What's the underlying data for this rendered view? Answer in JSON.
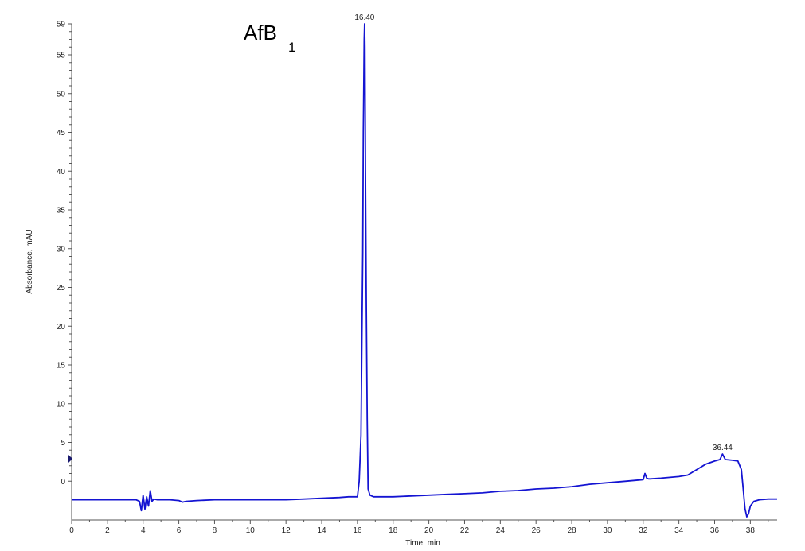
{
  "chart_data": {
    "type": "line",
    "title_main": "AfB",
    "title_sub": "1",
    "xlabel": "Time, min",
    "ylabel": "Absorbance, mAU",
    "xlim": [
      0,
      39.5
    ],
    "ylim": [
      -5,
      59
    ],
    "x_ticks": [
      0,
      2,
      4,
      6,
      8,
      10,
      12,
      14,
      16,
      18,
      20,
      22,
      24,
      26,
      28,
      30,
      32,
      34,
      36,
      38
    ],
    "y_ticks": [
      0,
      5,
      10,
      15,
      20,
      25,
      30,
      35,
      40,
      45,
      50,
      55,
      59
    ],
    "peak_labels": [
      {
        "text": "16.40",
        "x": 16.4,
        "y": 59
      },
      {
        "text": "36.44",
        "x": 36.44,
        "y": 3.5
      }
    ],
    "color": "#1414d2",
    "series": [
      {
        "x": [
          0,
          1,
          2,
          3,
          3.6,
          3.8,
          3.9,
          4.0,
          4.1,
          4.2,
          4.3,
          4.4,
          4.5,
          4.6,
          4.8,
          5.0,
          5.5,
          6.0,
          6.2,
          6.4,
          7,
          8,
          9,
          10,
          11,
          12,
          13,
          14,
          15,
          15.5,
          16.0,
          16.1,
          16.2,
          16.25,
          16.3,
          16.33,
          16.36,
          16.38,
          16.4,
          16.42,
          16.45,
          16.5,
          16.55,
          16.6,
          16.7,
          16.8,
          16.9,
          17.0,
          18,
          19,
          20,
          21,
          22,
          23,
          24,
          25,
          26,
          27,
          28,
          29,
          30,
          31,
          32.0,
          32.1,
          32.2,
          32.3,
          32.4,
          33,
          34,
          34.5,
          35.0,
          35.5,
          36.0,
          36.3,
          36.44,
          36.6,
          37.0,
          37.3,
          37.5,
          37.6,
          37.7,
          37.8,
          37.9,
          38.0,
          38.2,
          38.5,
          39.0,
          39.5
        ],
        "y": [
          -2.4,
          -2.4,
          -2.4,
          -2.4,
          -2.4,
          -2.6,
          -3.8,
          -1.8,
          -3.6,
          -2.0,
          -3.2,
          -1.2,
          -2.6,
          -2.3,
          -2.4,
          -2.4,
          -2.4,
          -2.5,
          -2.7,
          -2.6,
          -2.5,
          -2.4,
          -2.4,
          -2.4,
          -2.4,
          -2.4,
          -2.3,
          -2.2,
          -2.1,
          -2.0,
          -2.0,
          0.0,
          6.0,
          18.0,
          29.5,
          45.0,
          52.5,
          57.0,
          59.0,
          56.0,
          40.0,
          22.0,
          8.0,
          -1.0,
          -1.8,
          -1.9,
          -2.0,
          -2.0,
          -2.0,
          -1.9,
          -1.8,
          -1.7,
          -1.6,
          -1.5,
          -1.3,
          -1.2,
          -1.0,
          -0.9,
          -0.7,
          -0.4,
          -0.2,
          0.0,
          0.2,
          1.0,
          0.4,
          0.3,
          0.3,
          0.4,
          0.6,
          0.8,
          1.5,
          2.2,
          2.6,
          2.8,
          3.5,
          2.8,
          2.7,
          2.6,
          1.5,
          -1.0,
          -3.5,
          -4.6,
          -4.2,
          -3.2,
          -2.6,
          -2.4,
          -2.3,
          -2.3
        ]
      }
    ]
  }
}
